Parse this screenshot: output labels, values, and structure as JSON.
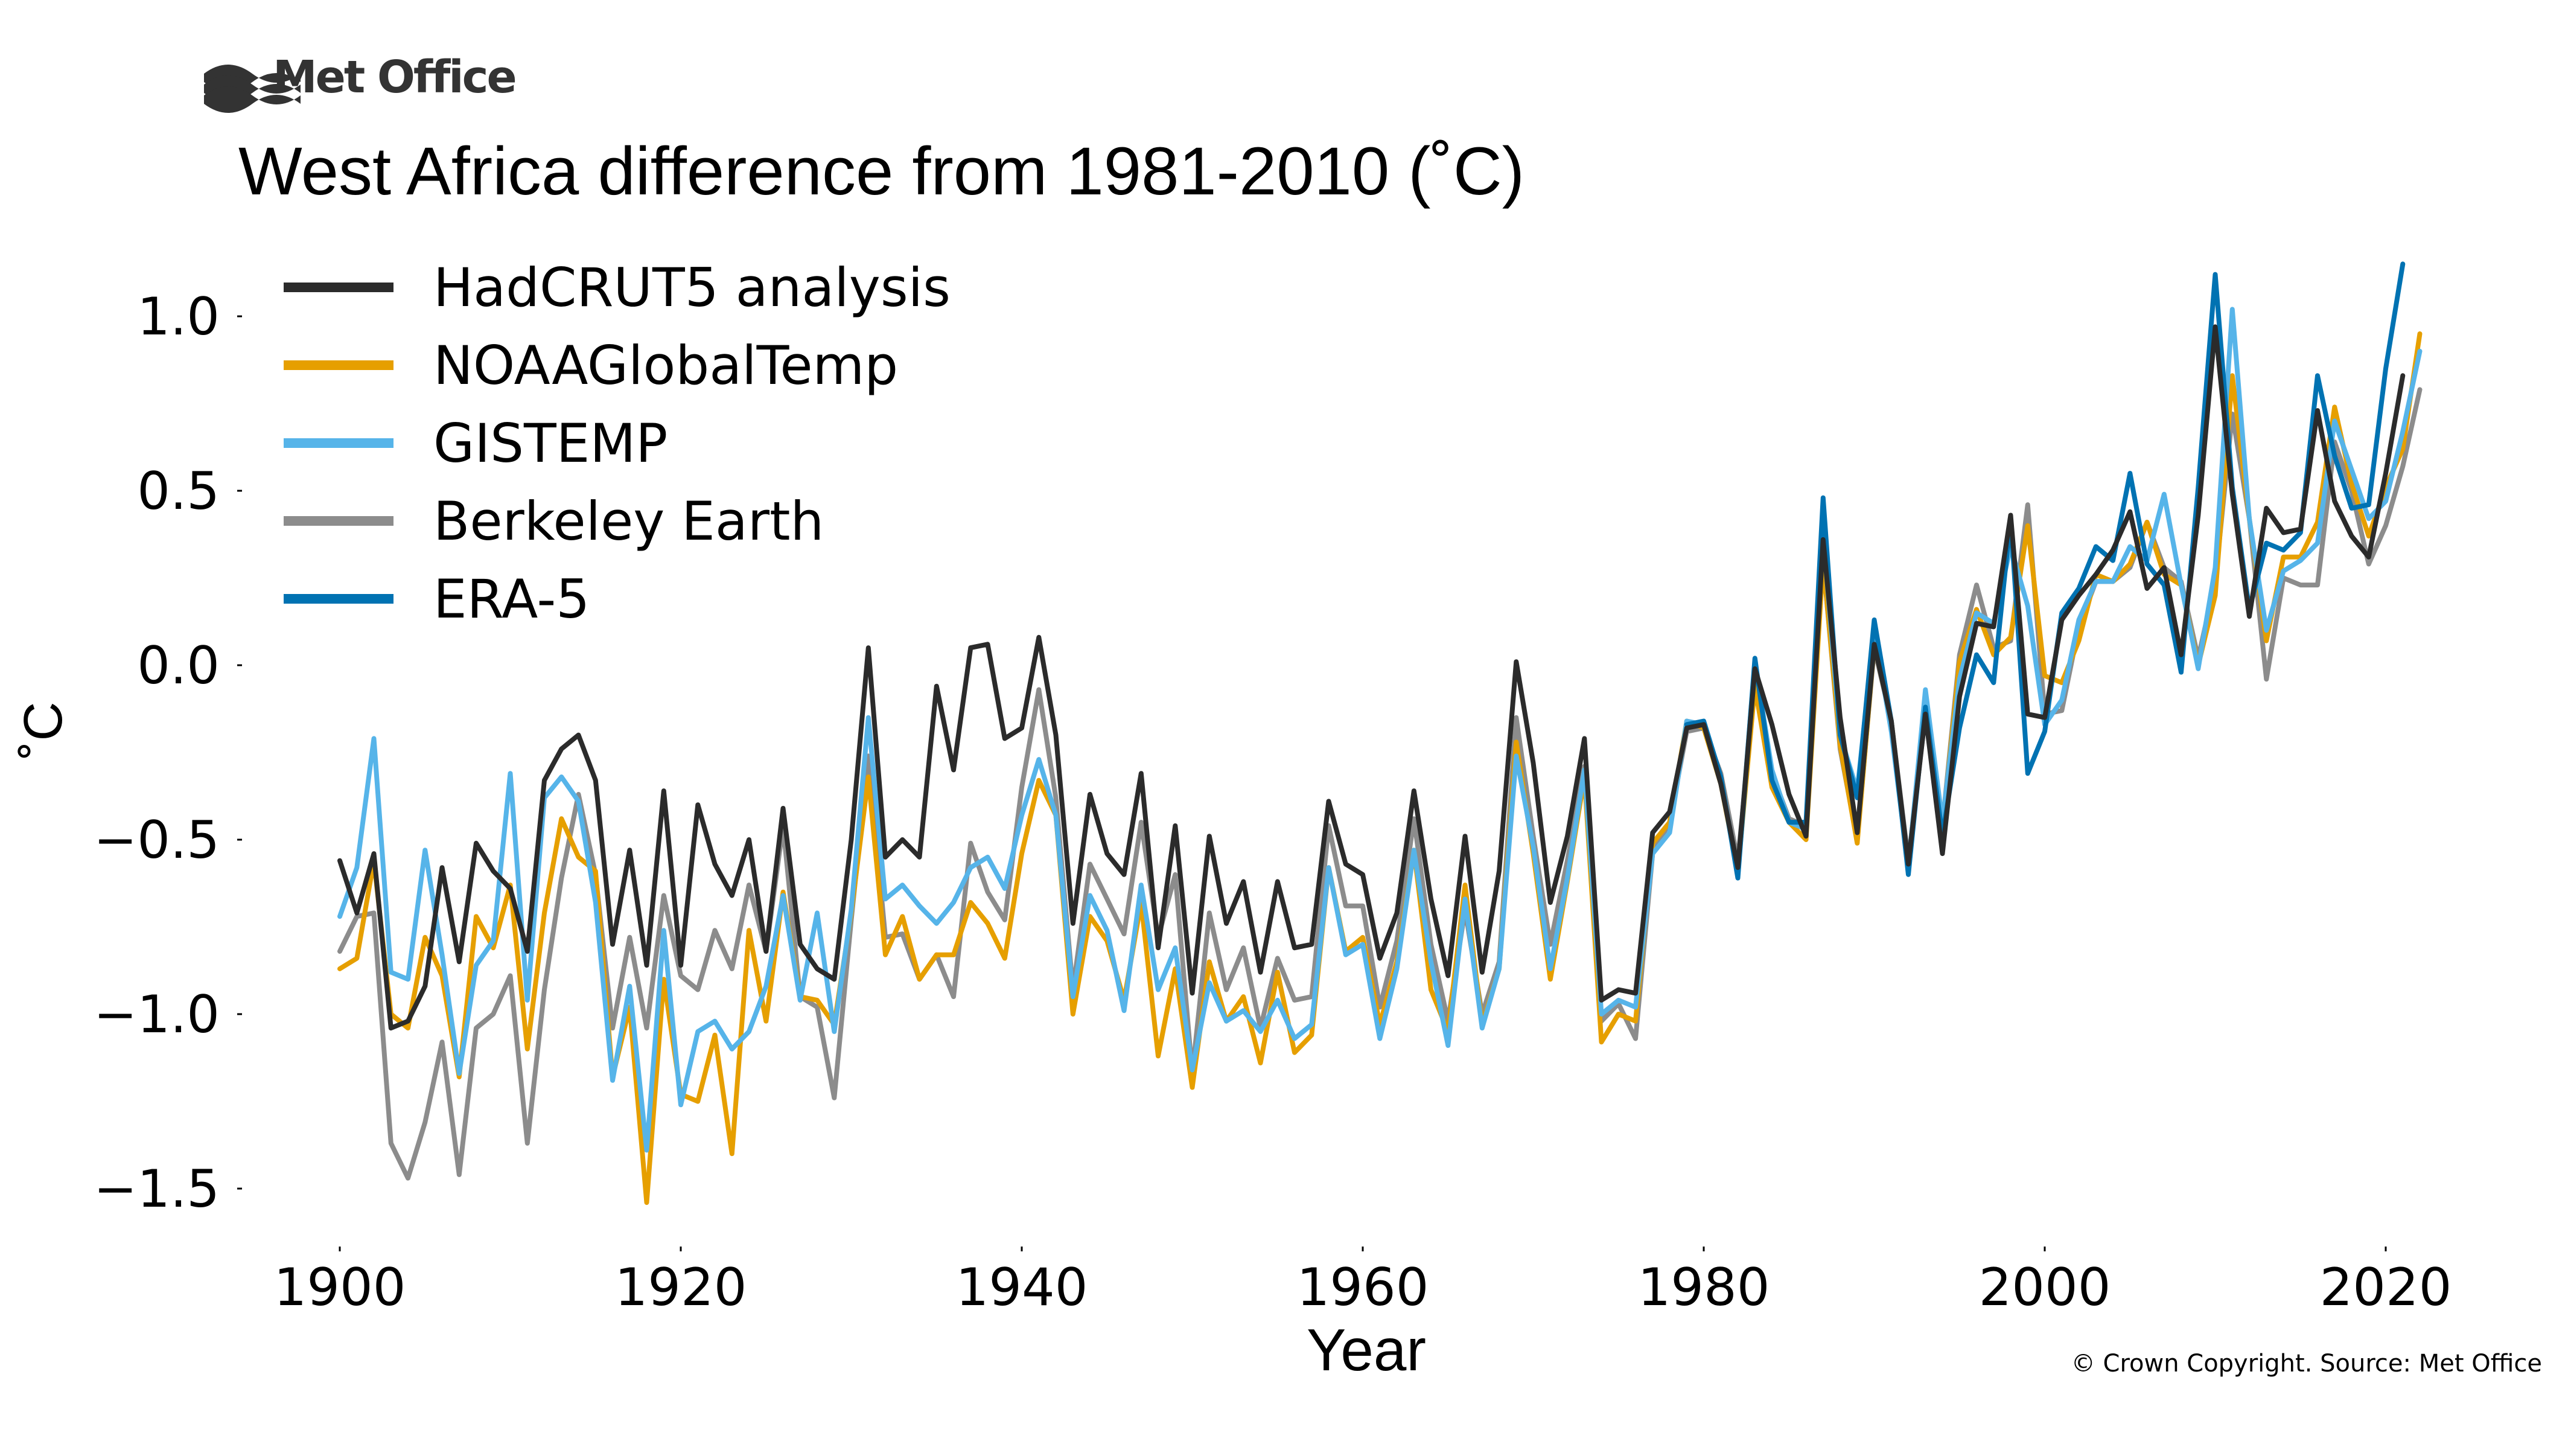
{
  "branding": {
    "logo_text": "Met Office",
    "copyright": "© Crown Copyright. Source: Met Office"
  },
  "chart_data": {
    "type": "line",
    "title": "West Africa difference from 1981-2010 (˚C)",
    "xlabel": "Year",
    "ylabel": "˚C",
    "xlim": [
      1895,
      2025
    ],
    "ylim": [
      -1.68,
      1.23
    ],
    "xticks": [
      1900,
      1920,
      1940,
      1960,
      1980,
      2000,
      2020
    ],
    "yticks": [
      1.0,
      0.5,
      0.0,
      -0.5,
      -1.0,
      -1.5
    ],
    "ytick_labels": [
      "1.0",
      "0.5",
      "0.0",
      "−0.5",
      "−1.0",
      "−1.5"
    ],
    "grid": false,
    "legend_position": "top-left",
    "series": [
      {
        "name": "Berkeley Earth",
        "color": "#8c8c8c",
        "x_start": 1900,
        "values": [
          -0.82,
          -0.72,
          -0.71,
          -1.37,
          -1.47,
          -1.31,
          -1.08,
          -1.46,
          -1.04,
          -1.0,
          -0.89,
          -1.37,
          -0.93,
          -0.61,
          -0.37,
          -0.6,
          -1.04,
          -0.78,
          -1.04,
          -0.66,
          -0.89,
          -0.93,
          -0.76,
          -0.87,
          -0.63,
          -0.82,
          -0.46,
          -0.95,
          -0.98,
          -1.24,
          -0.73,
          -0.26,
          -0.78,
          -0.77,
          -0.9,
          -0.83,
          -0.95,
          -0.51,
          -0.65,
          -0.73,
          -0.35,
          -0.07,
          -0.38,
          -0.93,
          -0.57,
          -0.67,
          -0.77,
          -0.45,
          -0.78,
          -0.6,
          -1.17,
          -0.71,
          -0.93,
          -0.81,
          -1.04,
          -0.84,
          -0.96,
          -0.95,
          -0.46,
          -0.69,
          -0.69,
          -0.98,
          -0.79,
          -0.44,
          -0.8,
          -1.02,
          -0.7,
          -1.0,
          -0.85,
          -0.15,
          -0.49,
          -0.8,
          -0.56,
          -0.29,
          -1.02,
          -0.97,
          -1.07,
          -0.54,
          -0.45,
          -0.19,
          -0.18,
          -0.31,
          -0.56,
          -0.06,
          -0.31,
          -0.44,
          -0.46,
          0.3,
          -0.24,
          -0.5,
          0.05,
          -0.16,
          -0.56,
          -0.14,
          -0.46,
          0.03,
          0.23,
          0.05,
          0.07,
          0.46,
          -0.14,
          -0.13,
          0.11,
          0.24,
          0.24,
          0.28,
          0.41,
          0.28,
          0.24,
          0.02,
          0.24,
          0.72,
          0.42,
          -0.04,
          0.25,
          0.23,
          0.23,
          0.64,
          0.5,
          0.29,
          0.4,
          0.57,
          0.79
        ]
      },
      {
        "name": "NOAAGlobalTemp",
        "color": "#e69f00",
        "x_start": 1900,
        "values": [
          -0.87,
          -0.84,
          -0.56,
          -1.0,
          -1.04,
          -0.78,
          -0.89,
          -1.18,
          -0.72,
          -0.81,
          -0.63,
          -1.1,
          -0.71,
          -0.44,
          -0.55,
          -0.59,
          -1.18,
          -0.98,
          -1.54,
          -0.9,
          -1.23,
          -1.25,
          -1.06,
          -1.4,
          -0.76,
          -1.02,
          -0.65,
          -0.95,
          -0.96,
          -1.03,
          -0.71,
          -0.32,
          -0.83,
          -0.72,
          -0.9,
          -0.83,
          -0.83,
          -0.68,
          -0.74,
          -0.84,
          -0.54,
          -0.33,
          -0.43,
          -1.0,
          -0.72,
          -0.79,
          -0.96,
          -0.68,
          -1.12,
          -0.87,
          -1.21,
          -0.85,
          -1.02,
          -0.95,
          -1.14,
          -0.88,
          -1.11,
          -1.06,
          -0.58,
          -0.82,
          -0.78,
          -1.03,
          -0.85,
          -0.53,
          -0.93,
          -1.05,
          -0.63,
          -1.03,
          -0.87,
          -0.22,
          -0.54,
          -0.9,
          -0.62,
          -0.32,
          -1.08,
          -1.0,
          -1.02,
          -0.51,
          -0.45,
          -0.16,
          -0.18,
          -0.34,
          -0.59,
          -0.06,
          -0.35,
          -0.45,
          -0.5,
          0.3,
          -0.23,
          -0.51,
          0.06,
          -0.16,
          -0.58,
          -0.12,
          -0.47,
          0.01,
          0.16,
          0.03,
          0.08,
          0.4,
          -0.03,
          -0.05,
          0.07,
          0.26,
          0.24,
          0.29,
          0.41,
          0.26,
          0.23,
          0.0,
          0.2,
          0.83,
          0.42,
          0.07,
          0.31,
          0.31,
          0.41,
          0.74,
          0.52,
          0.37,
          0.51,
          0.62,
          0.95
        ]
      },
      {
        "name": "GISTEMP",
        "color": "#56b4e9",
        "x_start": 1900,
        "values": [
          -0.72,
          -0.58,
          -0.21,
          -0.88,
          -0.9,
          -0.53,
          -0.83,
          -1.17,
          -0.86,
          -0.79,
          -0.31,
          -0.96,
          -0.38,
          -0.32,
          -0.39,
          -0.68,
          -1.19,
          -0.92,
          -1.39,
          -0.76,
          -1.26,
          -1.05,
          -1.02,
          -1.1,
          -1.05,
          -0.92,
          -0.66,
          -0.96,
          -0.71,
          -1.05,
          -0.7,
          -0.15,
          -0.67,
          -0.63,
          -0.69,
          -0.74,
          -0.68,
          -0.58,
          -0.55,
          -0.64,
          -0.43,
          -0.27,
          -0.43,
          -0.95,
          -0.66,
          -0.76,
          -0.99,
          -0.63,
          -0.93,
          -0.81,
          -1.16,
          -0.91,
          -1.02,
          -0.99,
          -1.05,
          -0.96,
          -1.07,
          -1.03,
          -0.58,
          -0.83,
          -0.8,
          -1.07,
          -0.87,
          -0.53,
          -0.85,
          -1.09,
          -0.67,
          -1.04,
          -0.87,
          -0.26,
          -0.52,
          -0.87,
          -0.61,
          -0.3,
          -1.0,
          -0.96,
          -0.98,
          -0.54,
          -0.48,
          -0.16,
          -0.17,
          -0.33,
          -0.59,
          0.01,
          -0.3,
          -0.45,
          -0.47,
          0.37,
          -0.2,
          -0.36,
          0.1,
          -0.19,
          -0.58,
          -0.07,
          -0.45,
          -0.04,
          0.15,
          0.12,
          0.34,
          0.17,
          -0.17,
          -0.1,
          0.13,
          0.24,
          0.24,
          0.34,
          0.3,
          0.49,
          0.23,
          -0.01,
          0.28,
          1.02,
          0.42,
          0.1,
          0.27,
          0.3,
          0.35,
          0.7,
          0.56,
          0.42,
          0.47,
          0.67,
          0.9
        ]
      },
      {
        "name": "ERA-5",
        "color": "#0072b2",
        "x_start": 1979,
        "values": [
          -0.17,
          -0.16,
          -0.32,
          -0.61,
          0.02,
          -0.33,
          -0.45,
          -0.45,
          0.48,
          -0.2,
          -0.38,
          0.13,
          -0.16,
          -0.6,
          -0.12,
          -0.49,
          -0.18,
          0.03,
          -0.05,
          0.42,
          -0.31,
          -0.19,
          0.15,
          0.22,
          0.34,
          0.3,
          0.55,
          0.29,
          0.23,
          -0.02,
          0.51,
          1.12,
          0.51,
          0.16,
          0.35,
          0.33,
          0.38,
          0.83,
          0.6,
          0.45,
          0.46,
          0.85,
          1.15
        ]
      },
      {
        "name": "HadCRUT5 analysis",
        "color": "#2b2b2b",
        "x_start": 1900,
        "values": [
          -0.56,
          -0.71,
          -0.54,
          -1.04,
          -1.02,
          -0.92,
          -0.58,
          -0.85,
          -0.51,
          -0.59,
          -0.64,
          -0.82,
          -0.33,
          -0.24,
          -0.2,
          -0.33,
          -0.8,
          -0.53,
          -0.86,
          -0.36,
          -0.86,
          -0.4,
          -0.57,
          -0.66,
          -0.5,
          -0.82,
          -0.41,
          -0.8,
          -0.87,
          -0.9,
          -0.5,
          0.05,
          -0.55,
          -0.5,
          -0.55,
          -0.06,
          -0.3,
          0.05,
          0.06,
          -0.21,
          -0.18,
          0.08,
          -0.2,
          -0.74,
          -0.37,
          -0.54,
          -0.6,
          -0.31,
          -0.81,
          -0.46,
          -0.94,
          -0.49,
          -0.74,
          -0.62,
          -0.88,
          -0.62,
          -0.81,
          -0.8,
          -0.39,
          -0.57,
          -0.6,
          -0.84,
          -0.71,
          -0.36,
          -0.67,
          -0.89,
          -0.49,
          -0.88,
          -0.59,
          0.01,
          -0.28,
          -0.68,
          -0.49,
          -0.21,
          -0.96,
          -0.93,
          -0.94,
          -0.48,
          -0.42,
          -0.18,
          -0.17,
          -0.34,
          -0.58,
          -0.01,
          -0.17,
          -0.37,
          -0.49,
          0.36,
          -0.15,
          -0.48,
          0.06,
          -0.16,
          -0.57,
          -0.14,
          -0.54,
          -0.09,
          0.12,
          0.11,
          0.43,
          -0.14,
          -0.15,
          0.13,
          0.2,
          0.26,
          0.33,
          0.44,
          0.22,
          0.28,
          0.03,
          0.43,
          0.97,
          0.49,
          0.14,
          0.45,
          0.38,
          0.39,
          0.73,
          0.47,
          0.37,
          0.31,
          0.55,
          0.83
        ]
      }
    ],
    "legend_order": [
      "HadCRUT5 analysis",
      "NOAAGlobalTemp",
      "GISTEMP",
      "Berkeley Earth",
      "ERA-5"
    ]
  }
}
